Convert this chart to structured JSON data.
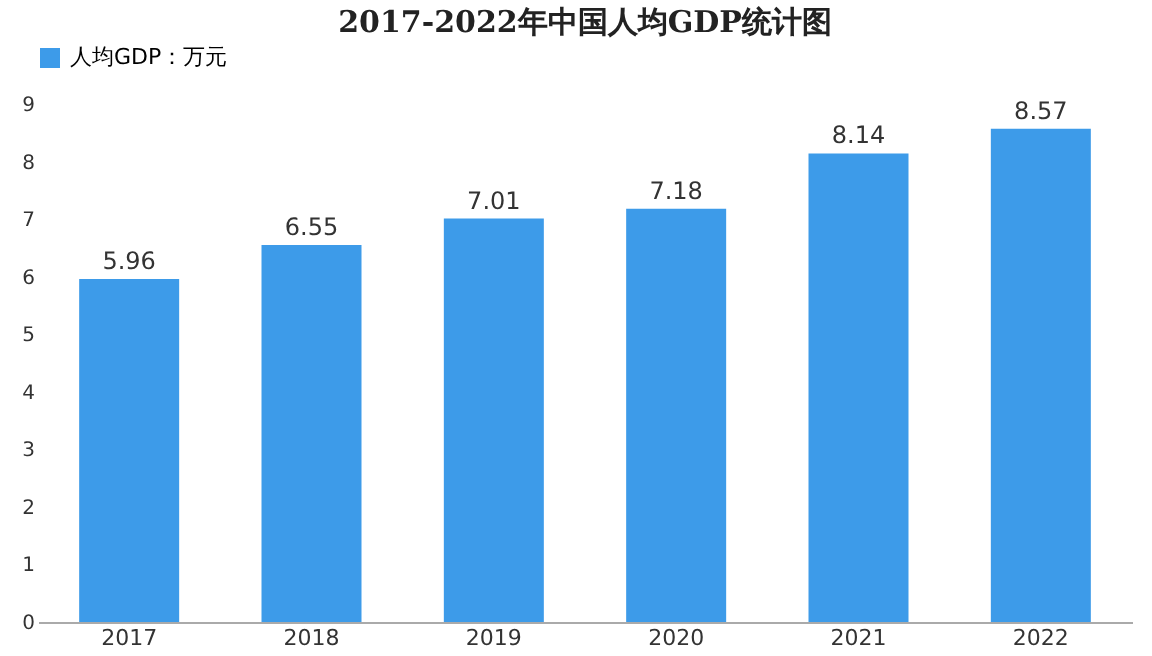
{
  "chart_data": {
    "type": "bar",
    "title": "2017-2022年中国人均GDP统计图",
    "categories": [
      "2017",
      "2018",
      "2019",
      "2020",
      "2021",
      "2022"
    ],
    "series": [
      {
        "name": "人均GDP：万元",
        "color": "#3d9be9",
        "values": [
          5.96,
          6.55,
          7.01,
          7.18,
          8.14,
          8.57
        ]
      }
    ],
    "ylim": [
      0,
      9
    ],
    "yticks": [
      0,
      1,
      2,
      3,
      4,
      5,
      6,
      7,
      8,
      9
    ],
    "grid": false,
    "legend": "top",
    "data_labels": true
  }
}
